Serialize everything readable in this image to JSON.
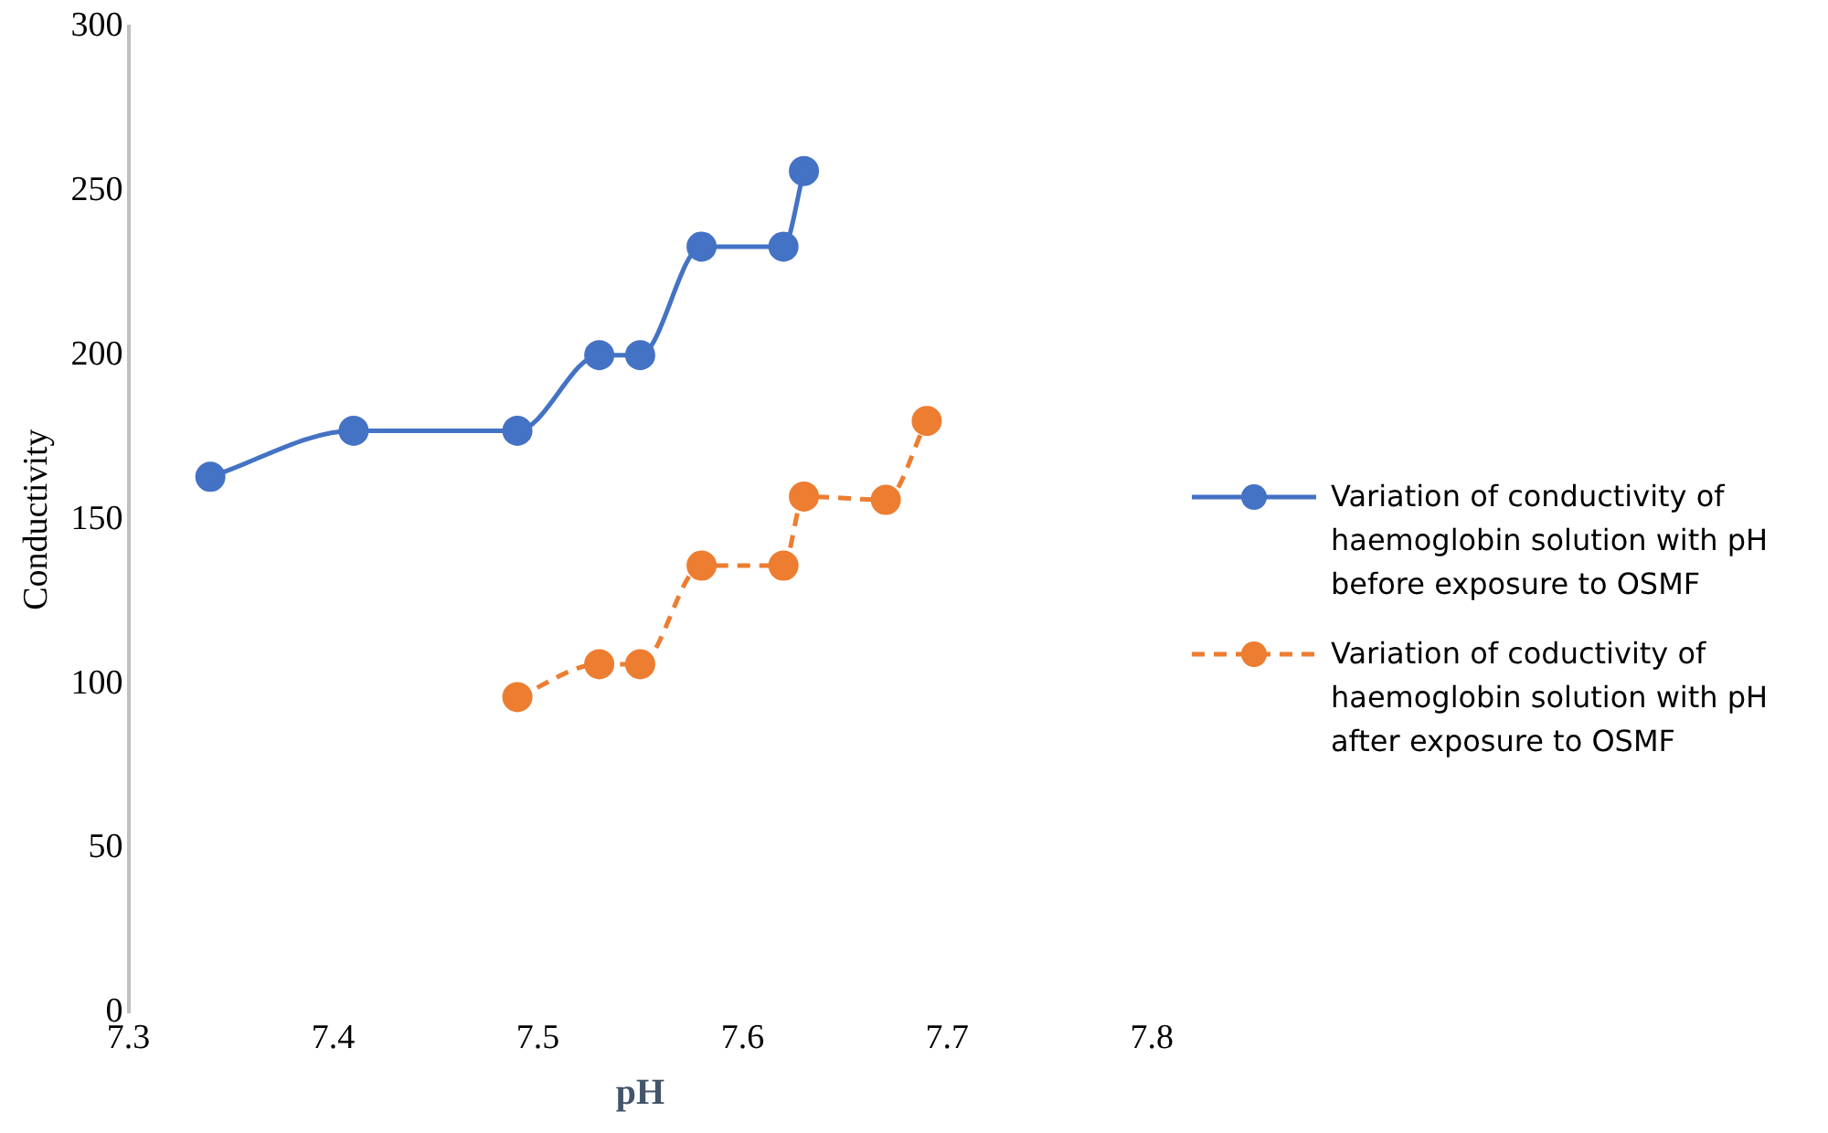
{
  "chart_data": {
    "type": "line",
    "xlabel": "pH",
    "ylabel": "Conductivity",
    "xlim": [
      7.3,
      7.8
    ],
    "xticks": [
      7.3,
      7.4,
      7.5,
      7.6,
      7.7,
      7.8
    ],
    "ylim": [
      0,
      300
    ],
    "yticks": [
      0,
      50,
      100,
      150,
      200,
      250,
      300
    ],
    "grid": false,
    "legend": "right",
    "marker": "circle",
    "series": [
      {
        "name": "Variation of conductivity of haemoglobin solution with pH before exposure to OSMF",
        "color": "#4472c4",
        "line_style": "solid",
        "x": [
          7.34,
          7.41,
          7.49,
          7.53,
          7.55,
          7.58,
          7.62,
          7.63
        ],
        "values": [
          163,
          177,
          177,
          200,
          200,
          233,
          233,
          256
        ]
      },
      {
        "name": "Variation of coductivity of haemoglobin solution with pH after exposure to OSMF",
        "color": "#ed7d31",
        "line_style": "dashed",
        "x": [
          7.49,
          7.53,
          7.55,
          7.58,
          7.62,
          7.63,
          7.67,
          7.69
        ],
        "values": [
          96,
          106,
          106,
          136,
          136,
          157,
          156,
          180
        ]
      }
    ]
  }
}
